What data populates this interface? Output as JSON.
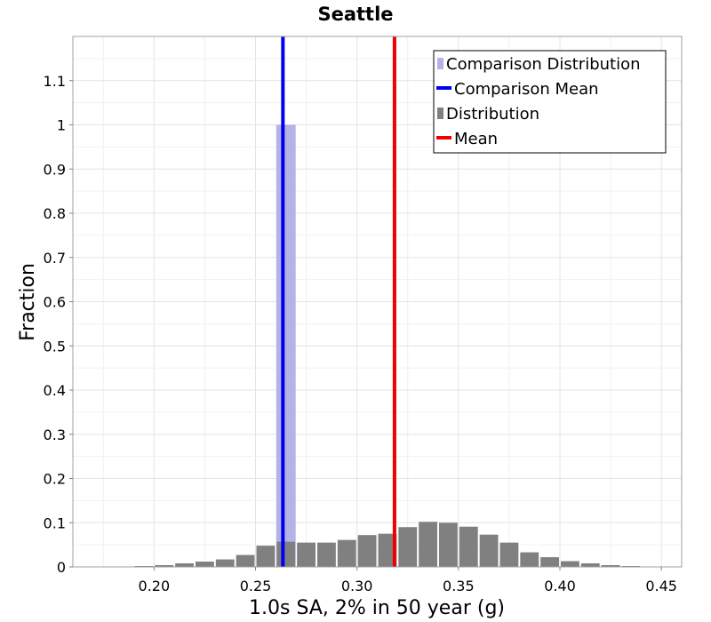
{
  "chart_data": {
    "type": "bar",
    "title": "Seattle",
    "xlabel": "1.0s SA, 2% in 50 year (g)",
    "ylabel": "Fraction",
    "xlim": [
      0.16,
      0.46
    ],
    "ylim": [
      0,
      1.2
    ],
    "bin_width": 0.01,
    "grid": true,
    "legend_position": "top-right",
    "x_ticks": [
      "0.20",
      "0.25",
      "0.30",
      "0.35",
      "0.40",
      "0.45"
    ],
    "x_tick_values": [
      0.2,
      0.25,
      0.3,
      0.35,
      0.4,
      0.45
    ],
    "y_ticks": [
      "0",
      "0.1",
      "0.2",
      "0.3",
      "0.4",
      "0.5",
      "0.6",
      "0.7",
      "0.8",
      "0.9",
      "1",
      "1.1"
    ],
    "y_tick_values": [
      0,
      0.1,
      0.2,
      0.3,
      0.4,
      0.5,
      0.6,
      0.7,
      0.8,
      0.9,
      1.0,
      1.1
    ],
    "series": [
      {
        "name": "Comparison Distribution",
        "kind": "bar",
        "color": "#b3b3e6",
        "x": [
          0.265
        ],
        "values": [
          1.0
        ]
      },
      {
        "name": "Comparison Mean",
        "kind": "vline",
        "color": "#0000ee",
        "x": 0.2635
      },
      {
        "name": "Distribution",
        "kind": "bar",
        "color": "#808080",
        "x": [
          0.175,
          0.185,
          0.195,
          0.205,
          0.215,
          0.225,
          0.235,
          0.245,
          0.255,
          0.265,
          0.275,
          0.285,
          0.295,
          0.305,
          0.315,
          0.325,
          0.335,
          0.345,
          0.355,
          0.365,
          0.375,
          0.385,
          0.395,
          0.405,
          0.415,
          0.425,
          0.435,
          0.445
        ],
        "values": [
          0.001,
          0.001,
          0.002,
          0.004,
          0.008,
          0.012,
          0.017,
          0.027,
          0.048,
          0.057,
          0.055,
          0.055,
          0.061,
          0.072,
          0.075,
          0.09,
          0.102,
          0.1,
          0.091,
          0.073,
          0.055,
          0.033,
          0.022,
          0.013,
          0.008,
          0.004,
          0.002,
          0.001
        ]
      },
      {
        "name": "Mean",
        "kind": "vline",
        "color": "#ee0000",
        "x": 0.3185
      }
    ]
  }
}
